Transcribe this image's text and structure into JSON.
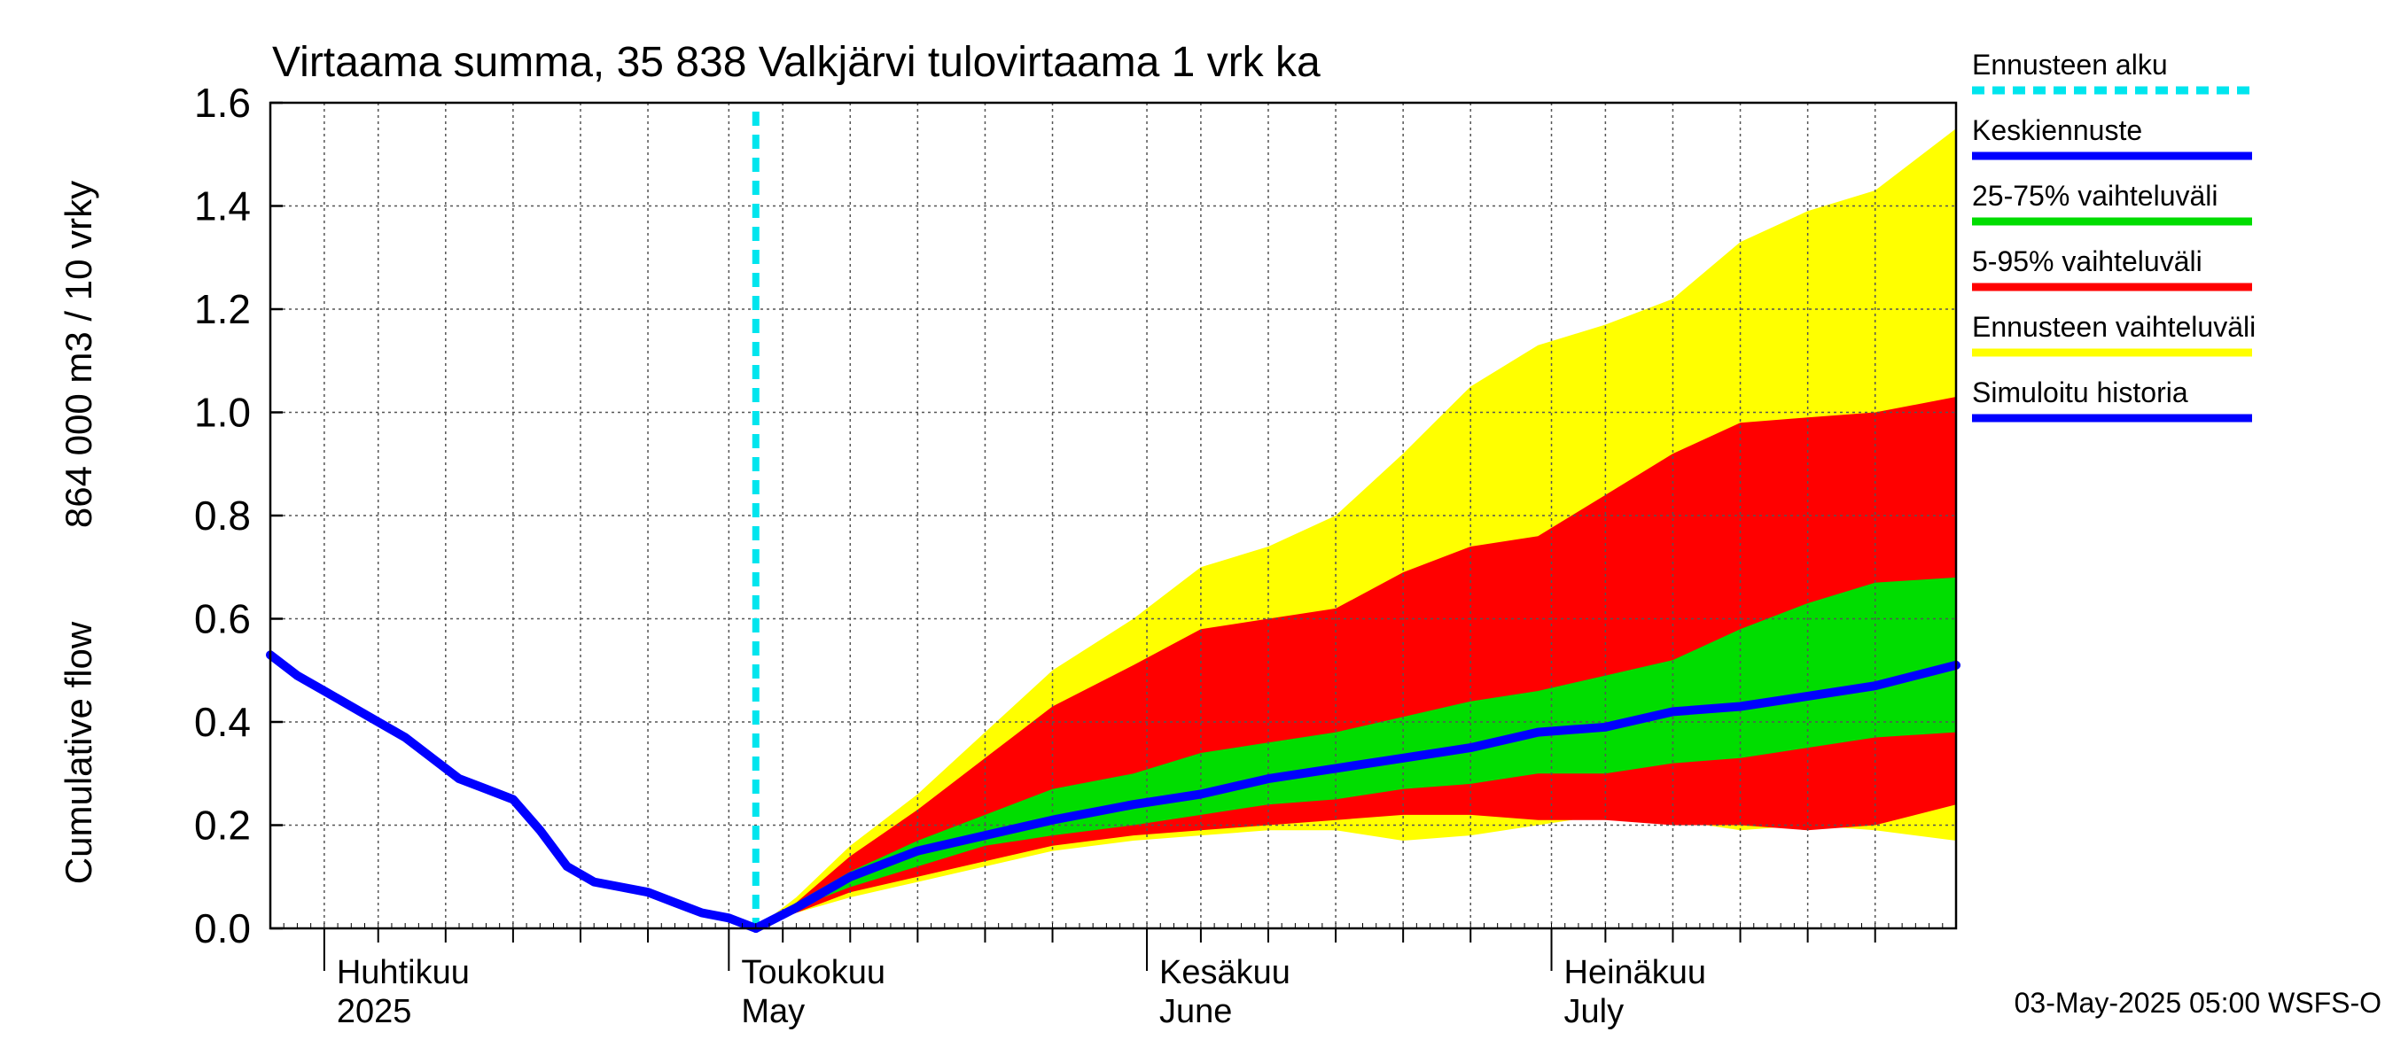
{
  "chart_data": {
    "type": "area",
    "title": "Virtaama summa, 35 838 Valkjärvi tulovirtaama 1 vrk ka",
    "ylabel_top": "864 000 m3 / 10 vrky",
    "ylabel_bottom": "Cumulative flow",
    "ylim": [
      0,
      1.6
    ],
    "yticks": [
      "0.0",
      "0.2",
      "0.4",
      "0.6",
      "0.8",
      "1.0",
      "1.2",
      "1.4",
      "1.6"
    ],
    "xlim": [
      "2025-03-28",
      "2025-07-31"
    ],
    "grid": true,
    "month_labels": [
      {
        "fi": "Huhtikuu",
        "en": "2025",
        "date": "2025-04-01"
      },
      {
        "fi": "Toukokuu",
        "en": "May",
        "date": "2025-05-01"
      },
      {
        "fi": "Kesäkuu",
        "en": "June",
        "date": "2025-06-01"
      },
      {
        "fi": "Heinäkuu",
        "en": "July",
        "date": "2025-07-01"
      }
    ],
    "forecast_start": "2025-05-03",
    "footer": "03-May-2025 05:00 WSFS-O",
    "legend": {
      "placement": "right",
      "entries": [
        {
          "label": "Ennusteen alku",
          "color": "#00e5ee",
          "style": "dashed"
        },
        {
          "label": "Keskiennuste",
          "color": "#0000ff",
          "style": "solid"
        },
        {
          "label": "25-75% vaihteluväli",
          "color": "#00dd00",
          "style": "solid"
        },
        {
          "label": "5-95% vaihteluväli",
          "color": "#ff0000",
          "style": "solid"
        },
        {
          "label": "Ennusteen vaihteluväli",
          "color": "#ffff00",
          "style": "solid"
        },
        {
          "label": "Simuloitu historia",
          "color": "#0000ff",
          "style": "solid"
        }
      ]
    },
    "colors": {
      "history": "#0000ff",
      "median": "#0000ff",
      "band_25_75": "#00dd00",
      "band_5_95": "#ff0000",
      "band_range": "#ffff00",
      "forecast_start": "#00e5ee"
    },
    "history": {
      "x": [
        "2025-03-28",
        "2025-03-30",
        "2025-04-01",
        "2025-04-03",
        "2025-04-05",
        "2025-04-07",
        "2025-04-09",
        "2025-04-11",
        "2025-04-13",
        "2025-04-15",
        "2025-04-17",
        "2025-04-19",
        "2025-04-21",
        "2025-04-23",
        "2025-04-25",
        "2025-04-27",
        "2025-04-29",
        "2025-05-01",
        "2025-05-03"
      ],
      "y": [
        0.53,
        0.49,
        0.46,
        0.43,
        0.4,
        0.37,
        0.33,
        0.29,
        0.27,
        0.25,
        0.19,
        0.12,
        0.09,
        0.08,
        0.07,
        0.05,
        0.03,
        0.02,
        0.0
      ]
    },
    "forecast": {
      "x": [
        "2025-05-03",
        "2025-05-06",
        "2025-05-10",
        "2025-05-15",
        "2025-05-20",
        "2025-05-25",
        "2025-05-31",
        "2025-06-05",
        "2025-06-10",
        "2025-06-15",
        "2025-06-20",
        "2025-06-25",
        "2025-06-30",
        "2025-07-05",
        "2025-07-10",
        "2025-07-15",
        "2025-07-20",
        "2025-07-25",
        "2025-07-31"
      ],
      "median": [
        0.0,
        0.04,
        0.1,
        0.15,
        0.18,
        0.21,
        0.24,
        0.26,
        0.29,
        0.31,
        0.33,
        0.35,
        0.38,
        0.39,
        0.42,
        0.43,
        0.45,
        0.47,
        0.51
      ],
      "p25": [
        0.0,
        0.04,
        0.08,
        0.12,
        0.16,
        0.18,
        0.2,
        0.22,
        0.24,
        0.25,
        0.27,
        0.28,
        0.3,
        0.3,
        0.32,
        0.33,
        0.35,
        0.37,
        0.38
      ],
      "p75": [
        0.0,
        0.05,
        0.11,
        0.17,
        0.22,
        0.27,
        0.3,
        0.34,
        0.36,
        0.38,
        0.41,
        0.44,
        0.46,
        0.49,
        0.52,
        0.58,
        0.63,
        0.67,
        0.68
      ],
      "p5": [
        0.0,
        0.03,
        0.07,
        0.1,
        0.13,
        0.16,
        0.18,
        0.19,
        0.2,
        0.21,
        0.22,
        0.22,
        0.21,
        0.21,
        0.2,
        0.2,
        0.19,
        0.2,
        0.24
      ],
      "p95": [
        0.0,
        0.05,
        0.14,
        0.23,
        0.33,
        0.43,
        0.51,
        0.58,
        0.6,
        0.62,
        0.69,
        0.74,
        0.76,
        0.84,
        0.92,
        0.98,
        0.99,
        1.0,
        1.03
      ],
      "min": [
        0.0,
        0.03,
        0.06,
        0.09,
        0.12,
        0.15,
        0.17,
        0.18,
        0.19,
        0.19,
        0.17,
        0.18,
        0.2,
        0.22,
        0.21,
        0.19,
        0.2,
        0.19,
        0.17
      ],
      "max": [
        0.0,
        0.06,
        0.16,
        0.26,
        0.38,
        0.5,
        0.6,
        0.7,
        0.74,
        0.8,
        0.92,
        1.05,
        1.13,
        1.17,
        1.22,
        1.33,
        1.39,
        1.43,
        1.55
      ]
    }
  }
}
